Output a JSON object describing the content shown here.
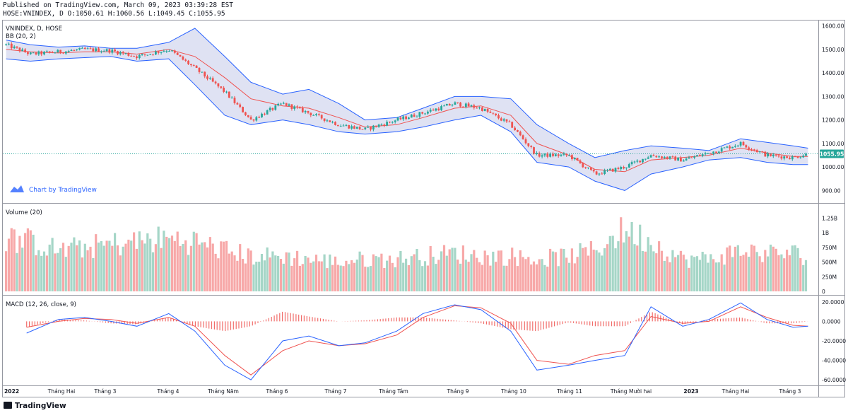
{
  "header": {
    "published": "Published on TradingView.com, March 09, 2023 03:39:28 EST",
    "ohlc": "HOSE:VNINDEX, D O:1050.61 H:1060.56 L:1049.45 C:1055.95"
  },
  "overlay": {
    "symbol": "VNINDEX, D, HOSE",
    "bb": "BB (20, 2)",
    "link_text": "Chart by TradingView",
    "volume": "Volume (20)",
    "macd": "MACD (12, 26, close, 9)"
  },
  "brand": {
    "logo_text": "TradingView"
  },
  "colors": {
    "up": "#26a69a",
    "down": "#ef5350",
    "bb_band": "#2962ff",
    "bb_mid": "#ef5350",
    "bb_fill": "#c5cae9",
    "macd_line": "#2962ff",
    "signal_line": "#ef5350",
    "vol_up": "#a5d6c7",
    "vol_down": "#f7a8a8",
    "last_price": "#26a69a"
  },
  "chart_data": [
    {
      "type": "candlestick",
      "title": "VNINDEX, D, HOSE",
      "indicator": "BB (20, 2)",
      "ylim": [
        850,
        1620
      ],
      "yticks": [
        "1600.00",
        "1500.00",
        "1400.00",
        "1300.00",
        "1200.00",
        "1100.00",
        "1000.00",
        "900.00"
      ],
      "x_ticks": [
        "2022",
        "Tháng Hai",
        "Tháng 3",
        "Tháng 4",
        "Tháng Năm",
        "Tháng 6",
        "Tháng 7",
        "Tháng Tám",
        "Tháng 9",
        "Tháng 10",
        "Tháng 11",
        "Tháng Mười hai",
        "2023",
        "Tháng Hai",
        "Tháng 3"
      ],
      "last_price": "1055.95",
      "close_x": [
        "2022-01-04",
        "2022-01-17",
        "2022-02-01",
        "2022-02-15",
        "2022-03-01",
        "2022-03-15",
        "2022-04-01",
        "2022-04-15",
        "2022-05-01",
        "2022-05-15",
        "2022-06-01",
        "2022-06-15",
        "2022-07-01",
        "2022-07-15",
        "2022-08-01",
        "2022-08-15",
        "2022-09-01",
        "2022-09-15",
        "2022-10-01",
        "2022-10-15",
        "2022-11-01",
        "2022-11-15",
        "2022-12-01",
        "2022-12-15",
        "2023-01-01",
        "2023-01-15",
        "2023-02-01",
        "2023-02-15",
        "2023-03-01",
        "2023-03-09"
      ],
      "close_y": [
        1520,
        1480,
        1490,
        1500,
        1495,
        1470,
        1500,
        1420,
        1320,
        1200,
        1270,
        1230,
        1180,
        1160,
        1200,
        1230,
        1270,
        1250,
        1180,
        1050,
        1050,
        970,
        1000,
        1050,
        1030,
        1060,
        1100,
        1050,
        1040,
        1056
      ],
      "bb_upper": [
        1540,
        1520,
        1510,
        1515,
        1505,
        1505,
        1530,
        1590,
        1470,
        1360,
        1310,
        1330,
        1270,
        1200,
        1210,
        1250,
        1300,
        1300,
        1290,
        1180,
        1100,
        1040,
        1070,
        1090,
        1080,
        1070,
        1120,
        1105,
        1090,
        1080
      ],
      "bb_basis": [
        1500,
        1490,
        1485,
        1490,
        1490,
        1480,
        1500,
        1470,
        1380,
        1290,
        1260,
        1250,
        1210,
        1170,
        1180,
        1210,
        1250,
        1260,
        1220,
        1100,
        1050,
        990,
        980,
        1030,
        1040,
        1050,
        1080,
        1060,
        1045,
        1045
      ],
      "bb_lower": [
        1460,
        1450,
        1460,
        1465,
        1470,
        1450,
        1460,
        1350,
        1220,
        1180,
        1200,
        1180,
        1150,
        1140,
        1150,
        1170,
        1200,
        1220,
        1150,
        1020,
        1000,
        940,
        900,
        970,
        1000,
        1030,
        1040,
        1020,
        1010,
        1010
      ]
    },
    {
      "type": "bar",
      "title": "Volume (20)",
      "ylim": [
        0,
        1400
      ],
      "yticks": [
        "1.25B",
        "1B",
        "750M",
        "500M",
        "250M",
        "0"
      ],
      "x": [
        "2022-01-04",
        "2022-01-17",
        "2022-02-01",
        "2022-02-15",
        "2022-03-01",
        "2022-03-15",
        "2022-04-01",
        "2022-04-15",
        "2022-05-01",
        "2022-05-15",
        "2022-06-01",
        "2022-06-15",
        "2022-07-01",
        "2022-07-15",
        "2022-08-01",
        "2022-08-15",
        "2022-09-01",
        "2022-09-15",
        "2022-10-01",
        "2022-10-15",
        "2022-11-01",
        "2022-11-15",
        "2022-12-01",
        "2022-12-15",
        "2023-01-01",
        "2023-01-15",
        "2023-02-01",
        "2023-02-15",
        "2023-03-01",
        "2023-03-09"
      ],
      "values_millions": [
        900,
        850,
        700,
        750,
        800,
        850,
        900,
        850,
        700,
        600,
        600,
        550,
        500,
        550,
        550,
        600,
        650,
        600,
        600,
        550,
        600,
        700,
        1050,
        850,
        550,
        550,
        700,
        650,
        650,
        600
      ]
    },
    {
      "type": "line",
      "title": "MACD (12, 26, close, 9)",
      "ylim": [
        -65,
        25
      ],
      "yticks": [
        "20.0000",
        "0.0000",
        "-20.0000",
        "-40.0000",
        "-60.0000"
      ],
      "x": [
        "2022-01-15",
        "2022-02-01",
        "2022-02-15",
        "2022-03-01",
        "2022-03-15",
        "2022-04-01",
        "2022-04-15",
        "2022-05-01",
        "2022-05-15",
        "2022-06-01",
        "2022-06-15",
        "2022-07-01",
        "2022-07-15",
        "2022-08-01",
        "2022-08-15",
        "2022-09-01",
        "2022-09-15",
        "2022-10-01",
        "2022-10-15",
        "2022-11-01",
        "2022-11-15",
        "2022-12-01",
        "2022-12-15",
        "2023-01-01",
        "2023-01-15",
        "2023-02-01",
        "2023-02-15",
        "2023-03-01",
        "2023-03-09"
      ],
      "macd": [
        -12,
        2,
        4,
        0,
        -5,
        8,
        -10,
        -45,
        -60,
        -20,
        -15,
        -25,
        -22,
        -10,
        8,
        17,
        12,
        -10,
        -50,
        -45,
        -40,
        -35,
        15,
        -5,
        2,
        19,
        2,
        -6,
        -5
      ],
      "signal": [
        -6,
        0,
        3,
        2,
        -2,
        4,
        -5,
        -35,
        -55,
        -30,
        -20,
        -25,
        -23,
        -14,
        4,
        16,
        14,
        -2,
        -40,
        -44,
        -35,
        -30,
        5,
        -2,
        0,
        15,
        4,
        -4,
        -5
      ]
    }
  ]
}
